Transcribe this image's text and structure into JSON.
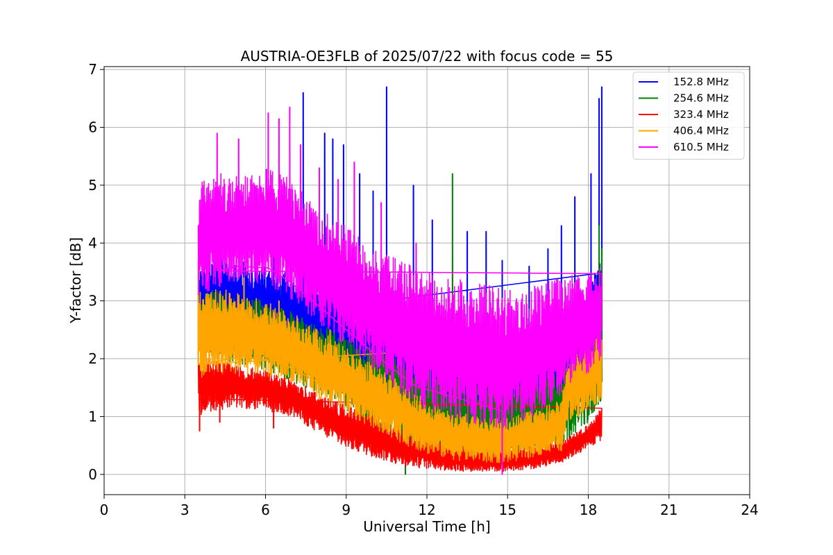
{
  "chart_data": {
    "type": "line",
    "title": "AUSTRIA-OE3FLB of 2025/07/22 with focus code = 55",
    "xlabel": "Universal Time [h]",
    "ylabel": "Y-factor [dB]",
    "xlim": [
      0,
      24
    ],
    "ylim": [
      -0.35,
      7.05
    ],
    "xticks": [
      0,
      3,
      6,
      9,
      12,
      15,
      18,
      21,
      24
    ],
    "yticks": [
      0,
      1,
      2,
      3,
      4,
      5,
      6,
      7
    ],
    "grid": true,
    "legend_position": "top-right",
    "series": [
      {
        "name": "152.8 MHz",
        "color": "#0000ff",
        "x": [
          3.5,
          4,
          5,
          6,
          7,
          8,
          9,
          10,
          11,
          12,
          13,
          14,
          15,
          16,
          17,
          18,
          18.5
        ],
        "low": [
          2.3,
          2.4,
          2.3,
          2.2,
          2.0,
          1.8,
          1.5,
          1.2,
          1.0,
          0.8,
          0.7,
          0.6,
          0.6,
          0.7,
          0.9,
          1.4,
          1.8
        ],
        "high": [
          3.6,
          3.8,
          3.7,
          3.6,
          3.5,
          3.3,
          3.1,
          2.9,
          2.7,
          2.5,
          2.4,
          2.3,
          2.3,
          2.5,
          2.7,
          3.2,
          3.8
        ],
        "spikes": [
          [
            4.5,
            3.8
          ],
          [
            5.5,
            3.9
          ],
          [
            6.3,
            4.4
          ],
          [
            7.4,
            6.6
          ],
          [
            8.2,
            5.9
          ],
          [
            8.5,
            5.8
          ],
          [
            8.9,
            5.7
          ],
          [
            9.5,
            5.2
          ],
          [
            10,
            4.9
          ],
          [
            10.5,
            6.7
          ],
          [
            11.5,
            5.0
          ],
          [
            12.2,
            4.4
          ],
          [
            13.5,
            4.2
          ],
          [
            14.2,
            4.2
          ],
          [
            14.8,
            3.7
          ],
          [
            15.8,
            3.6
          ],
          [
            16.5,
            3.9
          ],
          [
            17,
            4.3
          ],
          [
            17.5,
            4.8
          ],
          [
            18.1,
            5.2
          ],
          [
            18.4,
            6.5
          ],
          [
            18.5,
            6.7
          ]
        ]
      },
      {
        "name": "254.6 MHz",
        "color": "#008000",
        "x": [
          3.5,
          4,
          5,
          6,
          7,
          8,
          9,
          10,
          11,
          12,
          13,
          14,
          15,
          16,
          17,
          18,
          18.5
        ],
        "low": [
          1.9,
          2.0,
          1.9,
          1.8,
          1.6,
          1.4,
          1.1,
          0.8,
          0.5,
          0.35,
          0.3,
          0.25,
          0.3,
          0.35,
          0.5,
          0.9,
          1.3
        ],
        "high": [
          3.0,
          3.2,
          3.1,
          3.0,
          2.8,
          2.6,
          2.4,
          2.2,
          2.0,
          1.8,
          1.7,
          1.6,
          1.6,
          1.7,
          1.9,
          2.4,
          2.9
        ],
        "spikes": [
          [
            11.2,
            0.0
          ],
          [
            12.95,
            5.2
          ],
          [
            18.4,
            4.3
          ],
          [
            18.5,
            3.9
          ]
        ]
      },
      {
        "name": "323.4 MHz",
        "color": "#ff0000",
        "x": [
          3.5,
          4,
          5,
          6,
          7,
          8,
          9,
          10,
          11,
          12,
          13,
          14,
          15,
          16,
          17,
          18,
          18.5
        ],
        "low": [
          1.0,
          1.1,
          1.15,
          1.1,
          1.0,
          0.7,
          0.45,
          0.3,
          0.15,
          0.1,
          0.05,
          0.05,
          0.05,
          0.1,
          0.2,
          0.45,
          0.6
        ],
        "high": [
          2.2,
          2.0,
          1.9,
          1.8,
          1.65,
          1.4,
          1.2,
          1.0,
          0.8,
          0.65,
          0.5,
          0.45,
          0.45,
          0.5,
          0.6,
          0.85,
          1.2
        ],
        "spikes": [
          [
            3.55,
            0.75
          ],
          [
            4.3,
            0.9
          ],
          [
            6.3,
            0.8
          ],
          [
            10.5,
            0.3
          ]
        ]
      },
      {
        "name": "406.4 MHz",
        "color": "#ffa500",
        "x": [
          3.5,
          4,
          5,
          6,
          7,
          8,
          9,
          10,
          11,
          12,
          13,
          14,
          15,
          16,
          17,
          17.3,
          18,
          18.5
        ],
        "low": [
          1.6,
          1.7,
          1.75,
          1.7,
          1.6,
          1.3,
          1.0,
          0.8,
          0.55,
          0.35,
          0.25,
          0.2,
          0.2,
          0.3,
          0.4,
          0.9,
          1.1,
          1.3
        ],
        "high": [
          3.3,
          3.2,
          3.2,
          3.0,
          2.8,
          2.5,
          2.2,
          1.9,
          1.6,
          1.3,
          1.1,
          1.0,
          1.0,
          1.1,
          1.3,
          2.1,
          2.3,
          2.6
        ],
        "spikes": [
          [
            3.5,
            3.7
          ],
          [
            5.2,
            3.4
          ],
          [
            6.5,
            3.0
          ],
          [
            8.4,
            2.5
          ]
        ]
      },
      {
        "name": "610.5 MHz",
        "color": "#ff00ff",
        "x": [
          3.5,
          4,
          5,
          6,
          7,
          8,
          9,
          10,
          11,
          12,
          13,
          14,
          15,
          16,
          17,
          18,
          18.5
        ],
        "low": [
          3.0,
          3.2,
          3.3,
          3.3,
          3.0,
          2.6,
          2.2,
          1.8,
          1.4,
          1.1,
          0.9,
          0.8,
          0.8,
          1.0,
          1.3,
          1.7,
          2.0
        ],
        "high": [
          5.0,
          5.2,
          5.2,
          5.3,
          5.1,
          4.6,
          4.3,
          3.9,
          3.7,
          3.5,
          3.4,
          3.3,
          3.2,
          3.3,
          3.4,
          3.5,
          3.6
        ],
        "spikes": [
          [
            4.2,
            5.9
          ],
          [
            5.0,
            5.8
          ],
          [
            6.1,
            6.25
          ],
          [
            6.5,
            6.15
          ],
          [
            6.9,
            6.35
          ],
          [
            7.3,
            5.7
          ],
          [
            8.0,
            5.3
          ],
          [
            8.7,
            5.1
          ],
          [
            9.3,
            5.4
          ],
          [
            10.3,
            4.7
          ],
          [
            11.6,
            4.0
          ],
          [
            14.8,
            0.0
          ]
        ]
      }
    ]
  }
}
